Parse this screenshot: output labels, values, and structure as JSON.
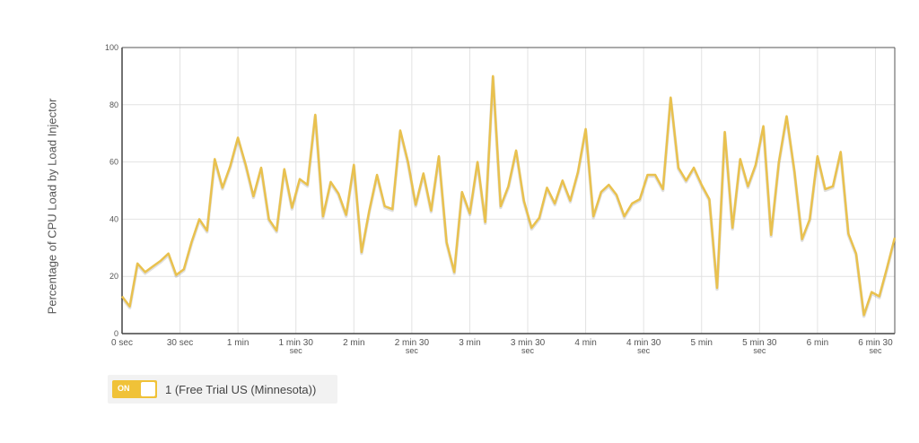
{
  "chart_data": {
    "type": "line",
    "title": "",
    "ylabel": "Percentage of CPU Load by Load Injector",
    "xlabel": "",
    "ylim": [
      0,
      100
    ],
    "yticks": [
      "0",
      "20",
      "40",
      "60",
      "80",
      "100"
    ],
    "xlim": [
      0,
      400
    ],
    "xticks": [
      {
        "sec": 0,
        "label": [
          "0 sec"
        ]
      },
      {
        "sec": 30,
        "label": [
          "30 sec"
        ]
      },
      {
        "sec": 60,
        "label": [
          "1 min"
        ]
      },
      {
        "sec": 90,
        "label": [
          "1 min 30",
          "sec"
        ]
      },
      {
        "sec": 120,
        "label": [
          "2 min"
        ]
      },
      {
        "sec": 150,
        "label": [
          "2 min 30",
          "sec"
        ]
      },
      {
        "sec": 180,
        "label": [
          "3 min"
        ]
      },
      {
        "sec": 210,
        "label": [
          "3 min 30",
          "sec"
        ]
      },
      {
        "sec": 240,
        "label": [
          "4 min"
        ]
      },
      {
        "sec": 270,
        "label": [
          "4 min 30",
          "sec"
        ]
      },
      {
        "sec": 300,
        "label": [
          "5 min"
        ]
      },
      {
        "sec": 330,
        "label": [
          "5 min 30",
          "sec"
        ]
      },
      {
        "sec": 360,
        "label": [
          "6 min"
        ]
      },
      {
        "sec": 390,
        "label": [
          "6 min 30",
          "sec"
        ]
      }
    ],
    "grid": true,
    "series": [
      {
        "name": "1 (Free Trial US (Minnesota))",
        "color": "#e9c14e",
        "x": [
          0,
          4,
          8,
          12,
          16,
          20,
          24,
          28,
          32,
          36,
          40,
          44,
          48,
          52,
          56,
          60,
          64,
          68,
          72,
          76,
          80,
          84,
          88,
          92,
          96,
          100,
          104,
          108,
          112,
          116,
          120,
          124,
          128,
          132,
          136,
          140,
          144,
          148,
          152,
          156,
          160,
          164,
          168,
          172,
          176,
          180,
          184,
          188,
          192,
          196,
          200,
          204,
          208,
          212,
          216,
          220,
          224,
          228,
          232,
          236,
          240,
          244,
          248,
          252,
          256,
          260,
          264,
          268,
          272,
          276,
          280,
          284,
          288,
          292,
          296,
          300,
          304,
          308,
          312,
          316,
          320,
          324,
          328,
          332,
          336,
          340,
          344,
          348,
          352,
          356,
          360,
          364,
          368,
          372,
          376,
          380,
          384,
          388,
          392,
          396,
          400
        ],
        "y": [
          13,
          9.5,
          24.5,
          21.5,
          23.5,
          25.5,
          28,
          20.5,
          22.5,
          32,
          40,
          36,
          61,
          51,
          58.5,
          68.5,
          59,
          48,
          58,
          40,
          36,
          57.5,
          44,
          54,
          52,
          76.5,
          41,
          53,
          49,
          41.5,
          59,
          28.5,
          43,
          55.5,
          44.5,
          43.5,
          71,
          60,
          45,
          56,
          43,
          62,
          32,
          21.5,
          49.5,
          42,
          60,
          39,
          90,
          44.5,
          51.5,
          64,
          46.5,
          37,
          40.5,
          51,
          45.5,
          53.5,
          46.5,
          56.5,
          71.5,
          41,
          49.5,
          52,
          48.5,
          41,
          45.5,
          47,
          55.5,
          55.5,
          50.5,
          82.5,
          58,
          53.5,
          58,
          52,
          47,
          16,
          70.5,
          37,
          61,
          51.5,
          59,
          72.5,
          34.5,
          60,
          76,
          57,
          33,
          40,
          62,
          50.5,
          51.5,
          63.5,
          35,
          28,
          6.5,
          14.5,
          13,
          23,
          33.5
        ]
      }
    ]
  },
  "legend": {
    "toggle_label": "ON",
    "series_label": "1 (Free Trial US (Minnesota))"
  }
}
